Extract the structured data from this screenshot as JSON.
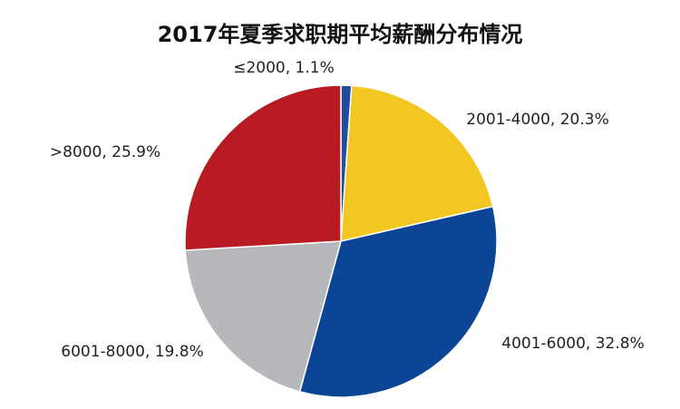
{
  "chart_data": {
    "type": "pie",
    "title": "2017年夏季求职期平均薪酬分布情况",
    "slices": [
      {
        "label": "≤2000, 1.1%",
        "value": 1.1,
        "color": "#1f4e9c"
      },
      {
        "label": "2001-4000, 20.3%",
        "value": 20.3,
        "color": "#f2c623"
      },
      {
        "label": "4001-6000, 32.8%",
        "value": 32.8,
        "color": "#0c4595"
      },
      {
        "label": "6001-8000, 19.8%",
        "value": 19.8,
        "color": "#b7b8bb"
      },
      {
        "label": ">8000, 25.9%",
        "value": 25.9,
        "color": "#b81c22"
      }
    ],
    "legend": "none",
    "start_angle_deg": 0,
    "direction": "clockwise"
  }
}
